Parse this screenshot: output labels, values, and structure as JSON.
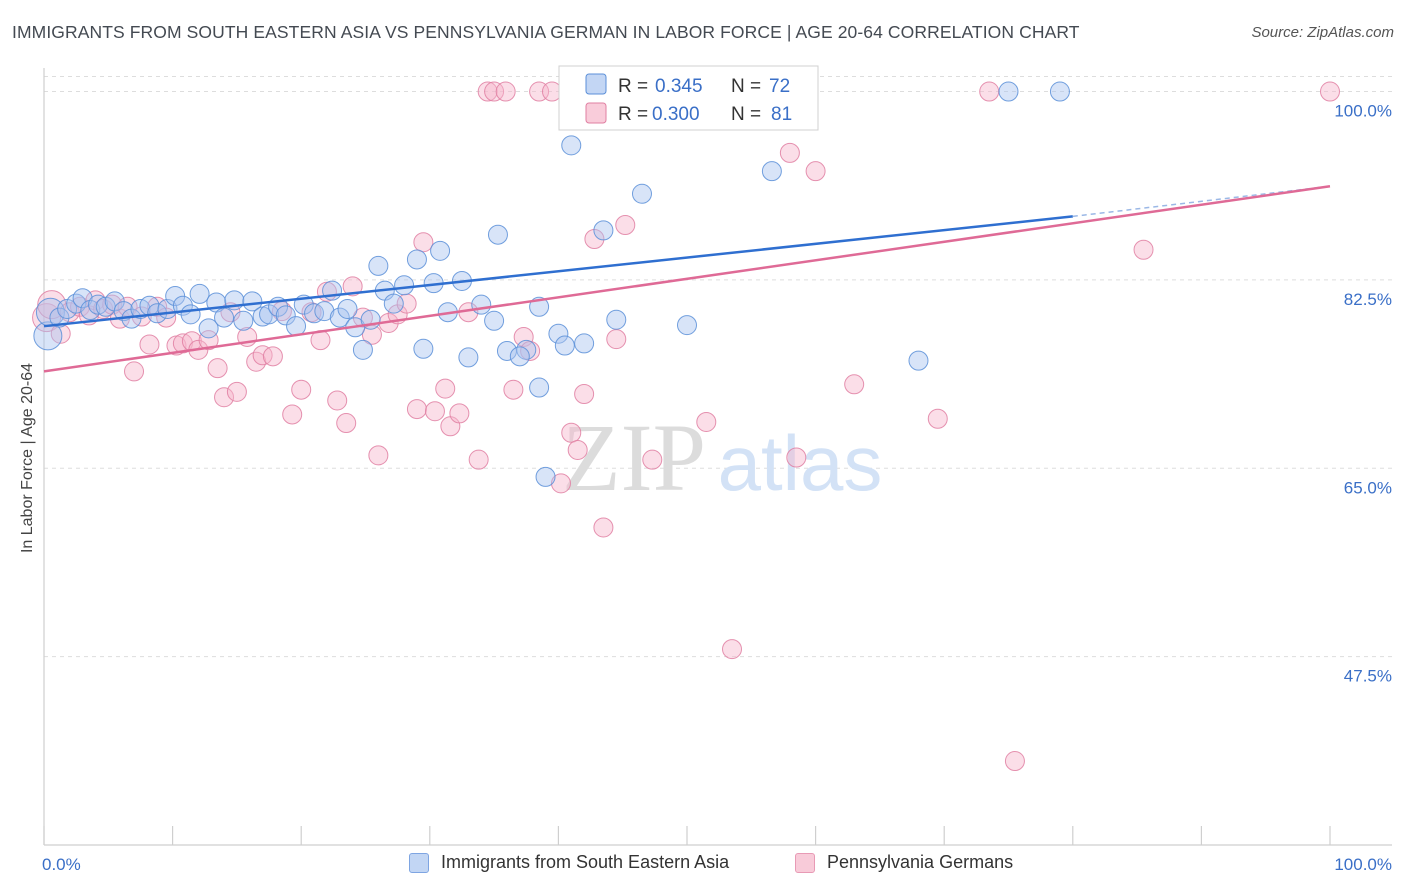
{
  "header": {
    "title": "IMMIGRANTS FROM SOUTH EASTERN ASIA VS PENNSYLVANIA GERMAN IN LABOR FORCE | AGE 20-64 CORRELATION CHART",
    "source": "Source: ZipAtlas.com"
  },
  "watermark": {
    "zip": "ZIP",
    "atlas": "atlas"
  },
  "colors": {
    "blue_fill": "#a9c4ef",
    "blue_stroke": "#5b8fd8",
    "blue_line": "#2f6fd0",
    "pink_fill": "#f6b6cb",
    "pink_stroke": "#e07fa2",
    "pink_line": "#df6a96",
    "accent_text": "#3a6fc7",
    "grid": "#dddddd"
  },
  "chart_data": {
    "type": "scatter",
    "title": "IMMIGRANTS FROM SOUTH EASTERN ASIA VS PENNSYLVANIA GERMAN IN LABOR FORCE | AGE 20-64 CORRELATION CHART",
    "xlabel": "",
    "ylabel": "In Labor Force | Age 20-64",
    "xlim": [
      0,
      100
    ],
    "ylim": [
      30,
      102
    ],
    "x_tick_labels": [
      {
        "value": 0,
        "label": "0.0%"
      },
      {
        "value": 100,
        "label": "100.0%"
      }
    ],
    "y_tick_labels": [
      {
        "value": 47.5,
        "label": "47.5%"
      },
      {
        "value": 65.0,
        "label": "65.0%"
      },
      {
        "value": 82.5,
        "label": "82.5%"
      },
      {
        "value": 100.0,
        "label": "100.0%"
      }
    ],
    "grid": true,
    "legend_position": "top-center",
    "series": [
      {
        "name": "Immigrants from South Eastern Asia",
        "color": "#5b8fd8",
        "r_label": "R =",
        "r_value": "0.345",
        "n_label": "N =",
        "n_value": "72",
        "trend": {
          "x": [
            0,
            80
          ],
          "y": [
            78.2,
            88.4
          ],
          "dashed_to": [
            100,
            91.2
          ]
        },
        "points": [
          [
            0.3,
            77.3
          ],
          [
            0.5,
            79.5
          ],
          [
            1.2,
            79.0
          ],
          [
            1.8,
            79.8
          ],
          [
            2.5,
            80.3
          ],
          [
            3.0,
            80.8
          ],
          [
            3.6,
            79.7
          ],
          [
            4.2,
            80.2
          ],
          [
            4.8,
            80.0
          ],
          [
            5.5,
            80.5
          ],
          [
            6.2,
            79.6
          ],
          [
            6.8,
            78.9
          ],
          [
            7.5,
            79.8
          ],
          [
            8.2,
            80.1
          ],
          [
            8.8,
            79.4
          ],
          [
            9.6,
            79.8
          ],
          [
            10.2,
            81.0
          ],
          [
            10.8,
            80.1
          ],
          [
            11.4,
            79.3
          ],
          [
            12.1,
            81.2
          ],
          [
            12.8,
            78.0
          ],
          [
            13.4,
            80.4
          ],
          [
            14.0,
            79.0
          ],
          [
            14.8,
            80.6
          ],
          [
            15.5,
            78.7
          ],
          [
            16.2,
            80.5
          ],
          [
            17.0,
            79.1
          ],
          [
            17.5,
            79.3
          ],
          [
            18.2,
            80.0
          ],
          [
            18.8,
            79.2
          ],
          [
            19.6,
            78.2
          ],
          [
            20.2,
            80.2
          ],
          [
            21.0,
            79.4
          ],
          [
            21.8,
            79.6
          ],
          [
            22.4,
            81.5
          ],
          [
            23.0,
            79.0
          ],
          [
            23.6,
            79.8
          ],
          [
            24.2,
            78.1
          ],
          [
            24.8,
            76.0
          ],
          [
            25.4,
            78.8
          ],
          [
            26.0,
            83.8
          ],
          [
            26.5,
            81.5
          ],
          [
            27.2,
            80.3
          ],
          [
            28.0,
            82.0
          ],
          [
            29.0,
            84.4
          ],
          [
            29.5,
            76.1
          ],
          [
            30.3,
            82.2
          ],
          [
            30.8,
            85.2
          ],
          [
            31.4,
            79.5
          ],
          [
            32.5,
            82.4
          ],
          [
            33.0,
            75.3
          ],
          [
            34.0,
            80.2
          ],
          [
            35.0,
            78.7
          ],
          [
            35.3,
            86.7
          ],
          [
            36.0,
            75.9
          ],
          [
            37.5,
            76.0
          ],
          [
            37.0,
            75.4
          ],
          [
            38.5,
            80.0
          ],
          [
            38.5,
            72.5
          ],
          [
            39.0,
            64.2
          ],
          [
            40.0,
            77.5
          ],
          [
            40.5,
            76.4
          ],
          [
            41.0,
            95.0
          ],
          [
            42.0,
            76.6
          ],
          [
            43.5,
            87.1
          ],
          [
            44.5,
            78.8
          ],
          [
            46.5,
            90.5
          ],
          [
            50.0,
            78.3
          ],
          [
            56.6,
            92.6
          ],
          [
            68.0,
            75.0
          ],
          [
            75.0,
            100.0
          ],
          [
            79.0,
            100.0
          ]
        ]
      },
      {
        "name": "Pennsylvania Germans",
        "color": "#e07fa2",
        "r_label": "R =",
        "r_value": "0.300",
        "n_label": "N =",
        "n_value": "81",
        "trend": {
          "x": [
            0,
            100
          ],
          "y": [
            74.0,
            91.2
          ]
        },
        "points": [
          [
            0.2,
            79.0
          ],
          [
            0.6,
            80.2
          ],
          [
            1.3,
            77.5
          ],
          [
            2.0,
            79.5
          ],
          [
            2.8,
            80.0
          ],
          [
            3.5,
            79.2
          ],
          [
            4.0,
            80.6
          ],
          [
            4.6,
            79.8
          ],
          [
            5.3,
            80.2
          ],
          [
            5.9,
            78.9
          ],
          [
            6.5,
            80.0
          ],
          [
            7.0,
            74.0
          ],
          [
            7.6,
            79.1
          ],
          [
            8.2,
            76.5
          ],
          [
            8.8,
            80.0
          ],
          [
            9.5,
            79.0
          ],
          [
            10.3,
            76.4
          ],
          [
            10.8,
            76.6
          ],
          [
            11.5,
            76.8
          ],
          [
            12.0,
            76.0
          ],
          [
            12.8,
            76.9
          ],
          [
            13.5,
            74.3
          ],
          [
            14.0,
            71.6
          ],
          [
            14.5,
            79.5
          ],
          [
            15.0,
            72.1
          ],
          [
            15.8,
            77.2
          ],
          [
            16.5,
            74.9
          ],
          [
            17.0,
            75.5
          ],
          [
            17.8,
            75.4
          ],
          [
            18.5,
            79.6
          ],
          [
            19.3,
            70.0
          ],
          [
            20.0,
            72.3
          ],
          [
            20.8,
            79.5
          ],
          [
            21.5,
            76.9
          ],
          [
            22.0,
            81.4
          ],
          [
            22.8,
            71.3
          ],
          [
            23.5,
            69.2
          ],
          [
            24.0,
            81.9
          ],
          [
            24.8,
            79.0
          ],
          [
            25.5,
            77.4
          ],
          [
            26.0,
            66.2
          ],
          [
            26.8,
            78.5
          ],
          [
            27.5,
            79.3
          ],
          [
            28.2,
            80.3
          ],
          [
            29.0,
            70.5
          ],
          [
            29.5,
            86.0
          ],
          [
            30.4,
            70.3
          ],
          [
            31.2,
            72.4
          ],
          [
            31.6,
            68.9
          ],
          [
            32.3,
            70.1
          ],
          [
            33.0,
            79.5
          ],
          [
            33.8,
            65.8
          ],
          [
            34.5,
            100.0
          ],
          [
            35.0,
            100.0
          ],
          [
            35.9,
            100.0
          ],
          [
            36.5,
            72.3
          ],
          [
            37.3,
            77.2
          ],
          [
            37.8,
            75.9
          ],
          [
            38.5,
            100.0
          ],
          [
            39.5,
            100.0
          ],
          [
            40.2,
            63.6
          ],
          [
            41.0,
            68.3
          ],
          [
            41.5,
            66.7
          ],
          [
            42.0,
            71.9
          ],
          [
            42.8,
            86.3
          ],
          [
            43.5,
            59.5
          ],
          [
            44.5,
            77.0
          ],
          [
            45.2,
            87.6
          ],
          [
            47.3,
            65.8
          ],
          [
            51.5,
            69.3
          ],
          [
            53.5,
            48.2
          ],
          [
            56.0,
            100.0
          ],
          [
            58.0,
            94.3
          ],
          [
            58.5,
            66.0
          ],
          [
            60.0,
            92.6
          ],
          [
            63.0,
            72.8
          ],
          [
            69.5,
            69.6
          ],
          [
            73.5,
            100.0
          ],
          [
            75.5,
            37.8
          ],
          [
            85.5,
            85.3
          ],
          [
            100.0,
            100.0
          ]
        ]
      }
    ]
  }
}
